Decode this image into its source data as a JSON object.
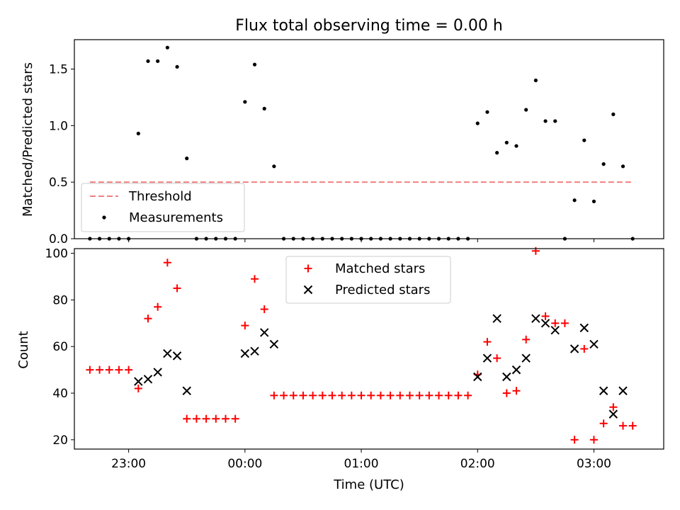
{
  "colors": {
    "threshold": "#f08080",
    "measurement": "#000000",
    "matched": "#ff0000",
    "predicted": "#000000"
  },
  "chart_data": [
    {
      "type": "scatter",
      "title": "Flux total observing time = 0.00 h",
      "xlabel": "",
      "ylabel": "Matched/Predicted stars",
      "x_unit": "minutes relative to 00:00 UTC",
      "xlim": [
        -88,
        216
      ],
      "ylim": [
        0,
        1.76
      ],
      "yticks": [
        0.0,
        0.5,
        1.0,
        1.5
      ],
      "ytick_labels": [
        "0.0",
        "0.5",
        "1.0",
        "1.5"
      ],
      "threshold": {
        "name": "Threshold",
        "value": 0.5,
        "x_range": [
          -80,
          200
        ]
      },
      "legend": {
        "placement": "lower-left",
        "entries": [
          "Threshold",
          "Measurements"
        ]
      },
      "series": [
        {
          "name": "Measurements",
          "x": [
            -80,
            -75,
            -70,
            -65,
            -60,
            -55,
            -50,
            -45,
            -40,
            -35,
            -30,
            -25,
            -20,
            -15,
            -10,
            -5,
            0,
            5,
            10,
            15,
            20,
            25,
            30,
            35,
            40,
            45,
            50,
            55,
            60,
            65,
            70,
            75,
            80,
            85,
            90,
            95,
            100,
            105,
            110,
            115,
            120,
            125,
            130,
            135,
            140,
            145,
            150,
            155,
            160,
            165,
            170,
            175,
            180,
            185,
            190,
            195,
            200
          ],
          "y": [
            0,
            0,
            0,
            0,
            0,
            0.93,
            1.57,
            1.57,
            1.69,
            1.52,
            0.71,
            0,
            0,
            0,
            0,
            0,
            1.21,
            1.54,
            1.15,
            0.64,
            0,
            0,
            0,
            0,
            0,
            0,
            0,
            0,
            0,
            0,
            0,
            0,
            0,
            0,
            0,
            0,
            0,
            0,
            0,
            0,
            1.02,
            1.12,
            0.76,
            0.85,
            0.82,
            1.14,
            1.4,
            1.04,
            1.04,
            0,
            0.34,
            0.87,
            0.33,
            0.66,
            1.1,
            0.64,
            0
          ]
        }
      ]
    },
    {
      "type": "scatter",
      "title": "",
      "xlabel": "Time (UTC)",
      "ylabel": "Count",
      "x_unit": "minutes relative to 00:00 UTC",
      "xlim": [
        -88,
        216
      ],
      "ylim": [
        16,
        102
      ],
      "yticks": [
        20,
        40,
        60,
        80,
        100
      ],
      "ytick_labels": [
        "20",
        "40",
        "60",
        "80",
        "100"
      ],
      "xticks": [
        -60,
        0,
        60,
        120,
        180
      ],
      "xtick_labels": [
        "23:00",
        "00:00",
        "01:00",
        "02:00",
        "03:00"
      ],
      "legend": {
        "placement": "upper-center",
        "entries": [
          "Matched stars",
          "Predicted stars"
        ]
      },
      "series": [
        {
          "name": "Matched stars",
          "x": [
            -80,
            -75,
            -70,
            -65,
            -60,
            -55,
            -50,
            -45,
            -40,
            -35,
            -30,
            -25,
            -20,
            -15,
            -10,
            -5,
            0,
            5,
            10,
            15,
            20,
            25,
            30,
            35,
            40,
            45,
            50,
            55,
            60,
            65,
            70,
            75,
            80,
            85,
            90,
            95,
            100,
            105,
            110,
            115,
            120,
            125,
            130,
            135,
            140,
            145,
            150,
            155,
            160,
            165,
            170,
            175,
            180,
            185,
            190,
            195,
            200
          ],
          "y": [
            50,
            50,
            50,
            50,
            50,
            42,
            72,
            77,
            96,
            85,
            29,
            29,
            29,
            29,
            29,
            29,
            69,
            89,
            76,
            39,
            39,
            39,
            39,
            39,
            39,
            39,
            39,
            39,
            39,
            39,
            39,
            39,
            39,
            39,
            39,
            39,
            39,
            39,
            39,
            39,
            48,
            62,
            55,
            40,
            41,
            63,
            101,
            73,
            70,
            70,
            20,
            59,
            20,
            27,
            34,
            26,
            26
          ]
        },
        {
          "name": "Predicted stars",
          "x": [
            -55,
            -50,
            -45,
            -40,
            -35,
            -30,
            0,
            5,
            10,
            15,
            120,
            125,
            130,
            135,
            140,
            145,
            150,
            155,
            160,
            170,
            175,
            180,
            185,
            190,
            195
          ],
          "y": [
            45,
            46,
            49,
            57,
            56,
            41,
            57,
            58,
            66,
            61,
            47,
            55,
            72,
            47,
            50,
            55,
            72,
            70,
            67,
            59,
            68,
            61,
            41,
            31,
            41
          ]
        }
      ]
    }
  ]
}
